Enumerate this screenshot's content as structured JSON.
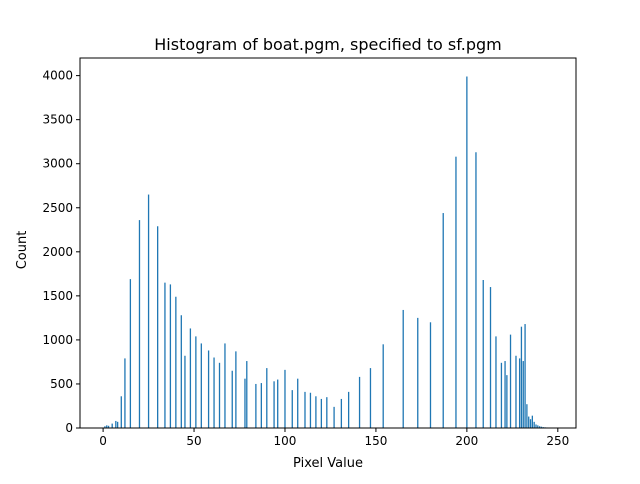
{
  "chart_data": {
    "type": "bar",
    "title": "Histogram of boat.pgm, specified to sf.pgm",
    "xlabel": "Pixel Value",
    "ylabel": "Count",
    "xlim": [
      -12.7,
      260
    ],
    "ylim": [
      0,
      4200
    ],
    "xticks": [
      0,
      50,
      100,
      150,
      200,
      250
    ],
    "yticks": [
      0,
      500,
      1000,
      1500,
      2000,
      2500,
      3000,
      3500,
      4000
    ],
    "grid": false,
    "legend": "none",
    "bar_color": "#1f77b4",
    "x": [
      1,
      2,
      3,
      5,
      7,
      8,
      10,
      12,
      15,
      20,
      25,
      30,
      34,
      37,
      40,
      43,
      45,
      48,
      51,
      54,
      58,
      61,
      64,
      67,
      71,
      73,
      78,
      79,
      84,
      87,
      90,
      94,
      96,
      100,
      104,
      107,
      111,
      114,
      117,
      120,
      123,
      127,
      131,
      135,
      141,
      147,
      154,
      165,
      173,
      180,
      187,
      194,
      200,
      205,
      209,
      213,
      216,
      219,
      221,
      222,
      224,
      227,
      229,
      230,
      231,
      232,
      233,
      234,
      235,
      236,
      237,
      238,
      239,
      240,
      241,
      242,
      243,
      244,
      245,
      246,
      247
    ],
    "values": [
      20,
      30,
      25,
      50,
      80,
      70,
      360,
      790,
      1690,
      2360,
      2650,
      2290,
      1650,
      1630,
      1490,
      1280,
      820,
      1130,
      1040,
      960,
      880,
      800,
      740,
      960,
      650,
      870,
      560,
      760,
      500,
      510,
      680,
      530,
      550,
      660,
      430,
      560,
      410,
      400,
      360,
      330,
      350,
      240,
      330,
      410,
      580,
      680,
      950,
      1340,
      1250,
      1200,
      2440,
      3080,
      3990,
      3130,
      1680,
      1600,
      1040,
      740,
      760,
      600,
      1060,
      820,
      790,
      1150,
      760,
      1180,
      270,
      130,
      100,
      140,
      70,
      40,
      30,
      20,
      15,
      10,
      8,
      6,
      5,
      4,
      3
    ]
  }
}
